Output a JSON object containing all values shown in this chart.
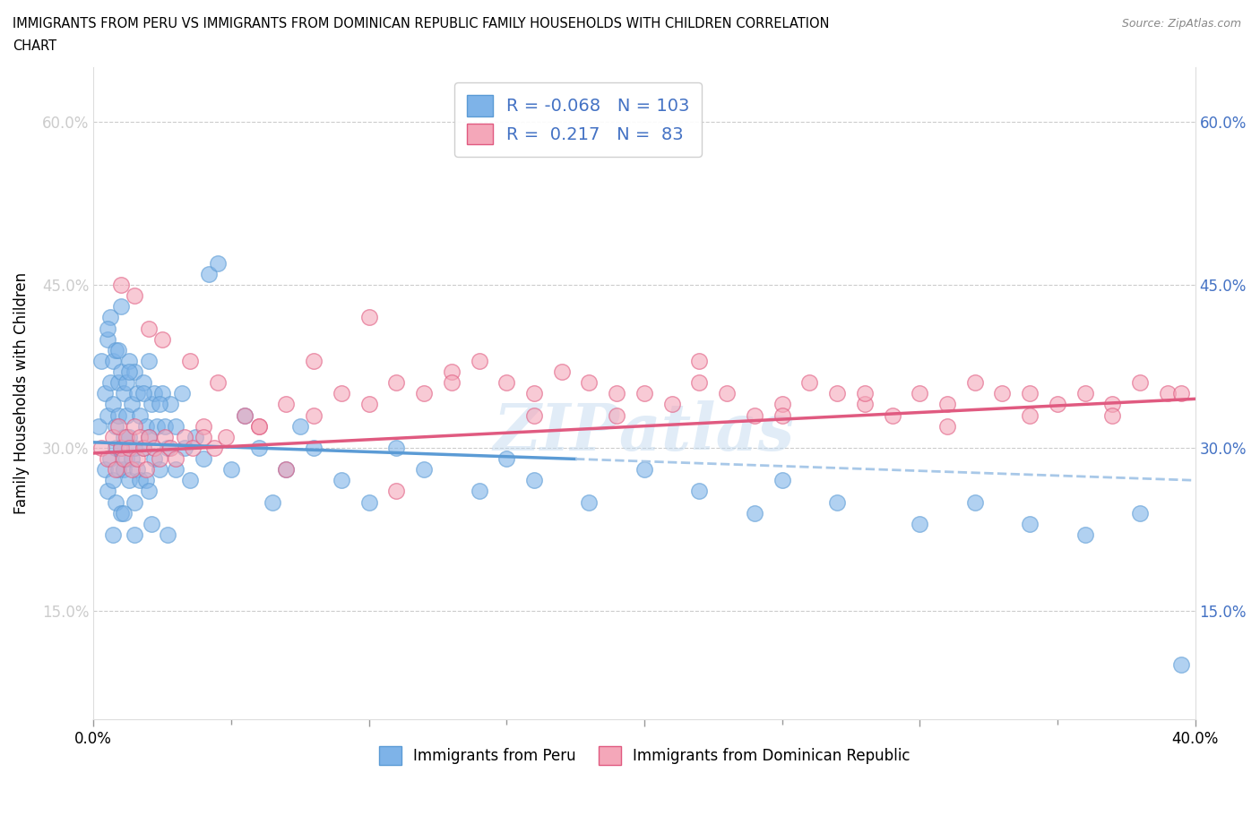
{
  "title_line1": "IMMIGRANTS FROM PERU VS IMMIGRANTS FROM DOMINICAN REPUBLIC FAMILY HOUSEHOLDS WITH CHILDREN CORRELATION",
  "title_line2": "CHART",
  "source": "Source: ZipAtlas.com",
  "ylabel": "Family Households with Children",
  "xmin": 0.0,
  "xmax": 0.4,
  "ymin": 0.05,
  "ymax": 0.65,
  "R_peru": -0.068,
  "N_peru": 103,
  "R_dr": 0.217,
  "N_dr": 83,
  "color_peru": "#7EB3E8",
  "color_dr": "#F4A7B9",
  "trend_color_peru_solid": "#5B9BD5",
  "trend_color_peru_dash": "#A8C8E8",
  "trend_color_dr": "#E05A80",
  "legend_text_color": "#4472C4",
  "watermark": "ZIPAtlas",
  "peru_x": [
    0.002,
    0.003,
    0.004,
    0.004,
    0.005,
    0.005,
    0.005,
    0.006,
    0.006,
    0.006,
    0.007,
    0.007,
    0.007,
    0.008,
    0.008,
    0.008,
    0.008,
    0.009,
    0.009,
    0.009,
    0.01,
    0.01,
    0.01,
    0.01,
    0.011,
    0.011,
    0.011,
    0.012,
    0.012,
    0.012,
    0.013,
    0.013,
    0.013,
    0.014,
    0.014,
    0.015,
    0.015,
    0.015,
    0.016,
    0.016,
    0.017,
    0.017,
    0.018,
    0.018,
    0.019,
    0.019,
    0.02,
    0.02,
    0.02,
    0.021,
    0.022,
    0.022,
    0.023,
    0.024,
    0.025,
    0.026,
    0.027,
    0.028,
    0.03,
    0.032,
    0.033,
    0.035,
    0.037,
    0.04,
    0.042,
    0.045,
    0.05,
    0.055,
    0.06,
    0.065,
    0.07,
    0.075,
    0.08,
    0.09,
    0.1,
    0.11,
    0.12,
    0.14,
    0.15,
    0.16,
    0.18,
    0.2,
    0.22,
    0.24,
    0.25,
    0.27,
    0.3,
    0.32,
    0.34,
    0.36,
    0.38,
    0.005,
    0.007,
    0.009,
    0.011,
    0.013,
    0.015,
    0.018,
    0.021,
    0.024,
    0.027,
    0.03,
    0.395
  ],
  "peru_y": [
    0.32,
    0.38,
    0.35,
    0.28,
    0.4,
    0.33,
    0.26,
    0.36,
    0.29,
    0.42,
    0.34,
    0.27,
    0.38,
    0.32,
    0.25,
    0.39,
    0.3,
    0.36,
    0.28,
    0.33,
    0.37,
    0.3,
    0.24,
    0.43,
    0.35,
    0.28,
    0.31,
    0.36,
    0.29,
    0.33,
    0.38,
    0.31,
    0.27,
    0.34,
    0.29,
    0.37,
    0.3,
    0.25,
    0.35,
    0.28,
    0.33,
    0.27,
    0.36,
    0.3,
    0.32,
    0.27,
    0.38,
    0.31,
    0.26,
    0.34,
    0.35,
    0.29,
    0.32,
    0.28,
    0.35,
    0.32,
    0.3,
    0.34,
    0.28,
    0.35,
    0.3,
    0.27,
    0.31,
    0.29,
    0.46,
    0.47,
    0.28,
    0.33,
    0.3,
    0.25,
    0.28,
    0.32,
    0.3,
    0.27,
    0.25,
    0.3,
    0.28,
    0.26,
    0.29,
    0.27,
    0.25,
    0.28,
    0.26,
    0.24,
    0.27,
    0.25,
    0.23,
    0.25,
    0.23,
    0.22,
    0.24,
    0.41,
    0.22,
    0.39,
    0.24,
    0.37,
    0.22,
    0.35,
    0.23,
    0.34,
    0.22,
    0.32,
    0.1
  ],
  "dr_x": [
    0.003,
    0.005,
    0.007,
    0.008,
    0.009,
    0.01,
    0.011,
    0.012,
    0.013,
    0.014,
    0.015,
    0.016,
    0.017,
    0.018,
    0.019,
    0.02,
    0.022,
    0.024,
    0.026,
    0.028,
    0.03,
    0.033,
    0.036,
    0.04,
    0.044,
    0.048,
    0.055,
    0.06,
    0.07,
    0.08,
    0.09,
    0.1,
    0.11,
    0.12,
    0.13,
    0.14,
    0.15,
    0.16,
    0.17,
    0.18,
    0.19,
    0.2,
    0.21,
    0.22,
    0.23,
    0.24,
    0.25,
    0.26,
    0.27,
    0.28,
    0.29,
    0.3,
    0.31,
    0.32,
    0.33,
    0.34,
    0.35,
    0.36,
    0.37,
    0.38,
    0.39,
    0.015,
    0.025,
    0.035,
    0.045,
    0.06,
    0.08,
    0.1,
    0.13,
    0.16,
    0.19,
    0.22,
    0.25,
    0.28,
    0.31,
    0.34,
    0.37,
    0.395,
    0.01,
    0.02,
    0.04,
    0.07,
    0.11
  ],
  "dr_y": [
    0.3,
    0.29,
    0.31,
    0.28,
    0.32,
    0.3,
    0.29,
    0.31,
    0.3,
    0.28,
    0.32,
    0.29,
    0.31,
    0.3,
    0.28,
    0.31,
    0.3,
    0.29,
    0.31,
    0.3,
    0.29,
    0.31,
    0.3,
    0.32,
    0.3,
    0.31,
    0.33,
    0.32,
    0.34,
    0.33,
    0.35,
    0.34,
    0.36,
    0.35,
    0.37,
    0.38,
    0.36,
    0.35,
    0.37,
    0.36,
    0.33,
    0.35,
    0.34,
    0.36,
    0.35,
    0.33,
    0.34,
    0.36,
    0.35,
    0.34,
    0.33,
    0.35,
    0.34,
    0.36,
    0.35,
    0.33,
    0.34,
    0.35,
    0.34,
    0.36,
    0.35,
    0.44,
    0.4,
    0.38,
    0.36,
    0.32,
    0.38,
    0.42,
    0.36,
    0.33,
    0.35,
    0.38,
    0.33,
    0.35,
    0.32,
    0.35,
    0.33,
    0.35,
    0.45,
    0.41,
    0.31,
    0.28,
    0.26
  ]
}
